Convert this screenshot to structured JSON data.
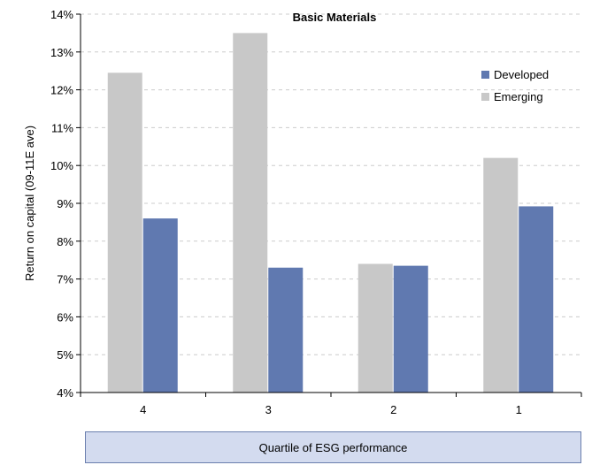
{
  "chart_data": {
    "type": "bar",
    "title": "Basic Materials",
    "xlabel": "Quartile of ESG performance",
    "ylabel": "Return on capital (09-11E ave)",
    "categories": [
      "4",
      "3",
      "2",
      "1"
    ],
    "series": [
      {
        "name": "Emerging",
        "values": [
          12.45,
          13.5,
          7.4,
          10.2
        ],
        "color": "#c8c8c8"
      },
      {
        "name": "Developed",
        "values": [
          8.6,
          7.3,
          7.35,
          8.92
        ],
        "color": "#6079b0"
      }
    ],
    "ylim": [
      4,
      14
    ],
    "yticks": [
      "4%",
      "5%",
      "6%",
      "7%",
      "8%",
      "9%",
      "10%",
      "11%",
      "12%",
      "13%",
      "14%"
    ],
    "grid": true,
    "legend": {
      "placement": "top-right",
      "entries": [
        "Developed",
        "Emerging"
      ]
    }
  }
}
